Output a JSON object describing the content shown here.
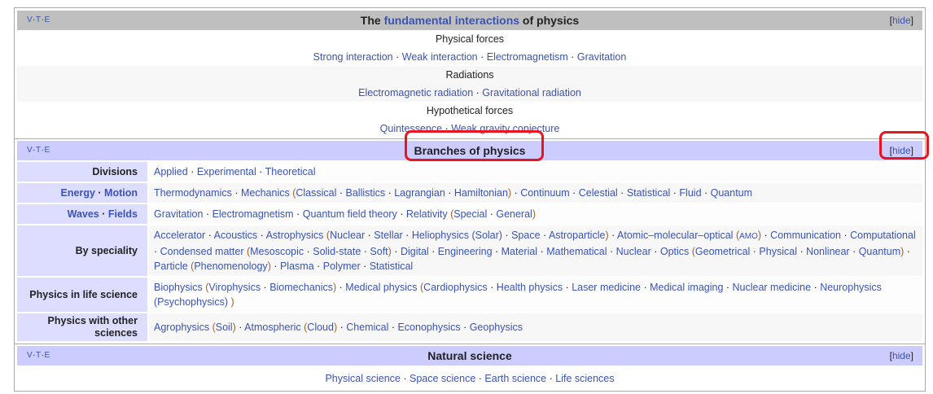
{
  "vte": {
    "v": "V",
    "t": "T",
    "e": "E"
  },
  "hide_label": "hide",
  "fundamental": {
    "title_pre": "The ",
    "title_link": "fundamental interactions",
    "title_post": " of physics",
    "groups": [
      {
        "title": "Physical forces",
        "items": [
          "Strong interaction",
          "Weak interaction",
          "Electromagnetism",
          "Gravitation"
        ]
      },
      {
        "title": "Radiations",
        "items": [
          "Electromagnetic radiation",
          "Gravitational radiation"
        ]
      },
      {
        "title": "Hypothetical forces",
        "items": [
          "Quintessence",
          "Weak gravity conjecture"
        ]
      }
    ]
  },
  "branches": {
    "title": "Branches of physics",
    "rows": [
      {
        "label": "Divisions",
        "items": [
          {
            "t": "Applied"
          },
          {
            "t": "Experimental"
          },
          {
            "t": "Theoretical"
          }
        ]
      },
      {
        "label_parts": [
          "Energy",
          "Motion"
        ],
        "items": [
          {
            "t": "Thermodynamics"
          },
          {
            "t": "Mechanics",
            "sub": [
              "Classical",
              "Ballistics",
              "Lagrangian",
              "Hamiltonian"
            ]
          },
          {
            "t": "Continuum"
          },
          {
            "t": "Celestial"
          },
          {
            "t": "Statistical"
          },
          {
            "t": "Fluid"
          },
          {
            "t": "Quantum"
          }
        ]
      },
      {
        "label_parts": [
          "Waves",
          "Fields"
        ],
        "items": [
          {
            "t": "Gravitation"
          },
          {
            "t": "Electromagnetism"
          },
          {
            "t": "Quantum field theory"
          },
          {
            "t": "Relativity",
            "sub": [
              "Special",
              "General"
            ]
          }
        ]
      },
      {
        "label": "By speciality",
        "items": [
          {
            "t": "Accelerator"
          },
          {
            "t": "Acoustics"
          },
          {
            "t": "Astrophysics",
            "sub": [
              "Nuclear",
              "Stellar",
              "Heliophysics (Solar)",
              "Space",
              "Astroparticle"
            ]
          },
          {
            "t": "Atomic–molecular–optical",
            "abbr": "AMO"
          },
          {
            "t": "Communication"
          },
          {
            "t": "Computational"
          },
          {
            "t": "Condensed matter",
            "sub": [
              "Mesoscopic",
              "Solid-state",
              "Soft"
            ]
          },
          {
            "t": "Digital"
          },
          {
            "t": "Engineering"
          },
          {
            "t": "Material"
          },
          {
            "t": "Mathematical"
          },
          {
            "t": "Nuclear"
          },
          {
            "t": "Optics",
            "sub": [
              "Geometrical",
              "Physical",
              "Nonlinear",
              "Quantum"
            ]
          },
          {
            "t": "Particle",
            "sub": [
              "Phenomenology"
            ]
          },
          {
            "t": "Plasma"
          },
          {
            "t": "Polymer"
          },
          {
            "t": "Statistical"
          }
        ]
      },
      {
        "label": "Physics in life science",
        "items": [
          {
            "t": "Biophysics",
            "sub": [
              "Virophysics",
              "Biomechanics"
            ]
          },
          {
            "t": "Medical physics",
            "sub": [
              "Cardiophysics",
              "Health physics",
              "Laser medicine",
              "Medical imaging",
              "Nuclear medicine",
              "Neurophysics (Psychophysics) "
            ]
          }
        ]
      },
      {
        "label": "Physics with other sciences",
        "items": [
          {
            "t": "Agrophysics",
            "sub": [
              "Soil"
            ]
          },
          {
            "t": "Atmospheric",
            "sub": [
              "Cloud"
            ]
          },
          {
            "t": "Chemical"
          },
          {
            "t": "Econophysics"
          },
          {
            "t": "Geophysics"
          }
        ]
      }
    ]
  },
  "natural": {
    "title": "Natural science",
    "items": [
      "Physical science",
      "Space science",
      "Earth science",
      "Life sciences"
    ]
  },
  "colors": {
    "link": "#3a53b5",
    "header_gray": "#bfbfbf",
    "header_blue": "#ccccff",
    "label_bg": "#ddddff",
    "highlight": "#e8141e"
  }
}
